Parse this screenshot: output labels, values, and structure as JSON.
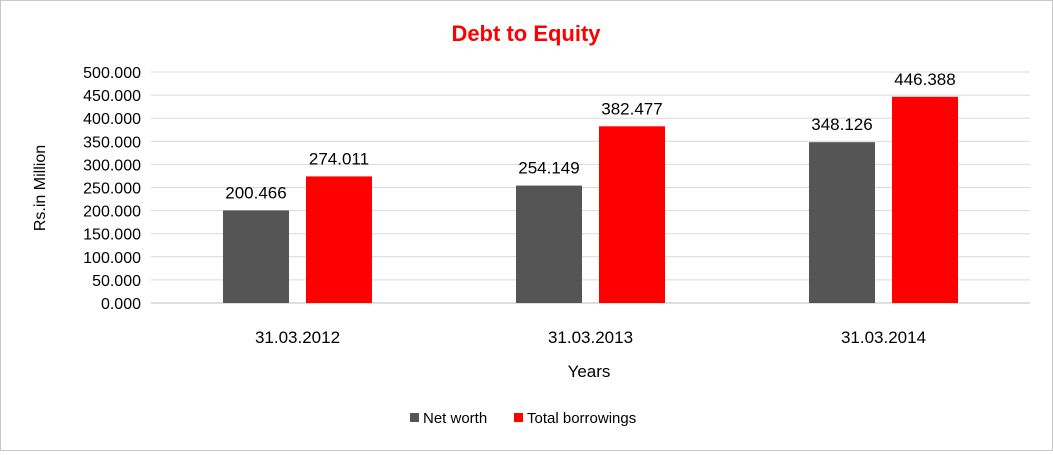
{
  "chart_data": {
    "type": "bar",
    "title": "Debt to Equity",
    "xlabel": "Years",
    "ylabel": "Rs.in Million",
    "categories": [
      "31.03.2012",
      "31.03.2013",
      "31.03.2014"
    ],
    "series": [
      {
        "name": "Net worth",
        "color": "#555555",
        "values": [
          200.466,
          254.149,
          348.126
        ],
        "labels": [
          "200.466",
          "254.149",
          "348.126"
        ]
      },
      {
        "name": "Total borrowings",
        "color": "#ff0000",
        "values": [
          274.011,
          382.477,
          446.388
        ],
        "labels": [
          "274.011",
          "382.477",
          "446.388"
        ]
      }
    ],
    "ylim": [
      0,
      500
    ],
    "yticks": [
      0,
      50,
      100,
      150,
      200,
      250,
      300,
      350,
      400,
      450,
      500
    ],
    "ytick_labels": [
      "0.000",
      "50.000",
      "100.000",
      "150.000",
      "200.000",
      "250.000",
      "300.000",
      "350.000",
      "400.000",
      "450.000",
      "500.000"
    ],
    "grid": true,
    "legend": "bottom",
    "title_color": "#ff0000"
  }
}
